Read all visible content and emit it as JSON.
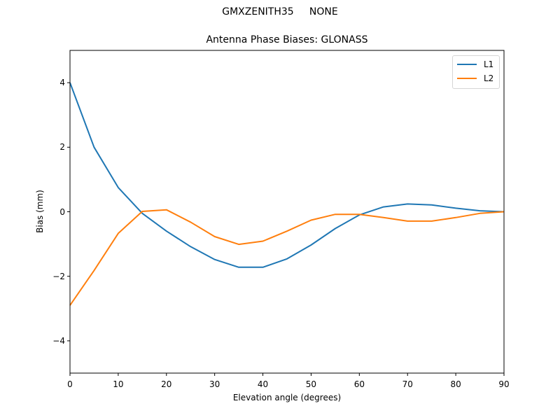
{
  "figure": {
    "suptitle": "GMXZENITH35     NONE",
    "title": "Antenna Phase Biases: GLONASS",
    "xlabel": "Elevation angle (degrees)",
    "ylabel": "Bias (mm)"
  },
  "legend": {
    "items": [
      {
        "label": "L1",
        "color": "#1f77b4"
      },
      {
        "label": "L2",
        "color": "#ff7f0e"
      }
    ]
  },
  "axes": {
    "xticks": [
      "0",
      "10",
      "20",
      "30",
      "40",
      "50",
      "60",
      "70",
      "80",
      "90"
    ],
    "yticks": [
      "4",
      "2",
      "0",
      "−2",
      "−4"
    ]
  },
  "chart_data": {
    "type": "line",
    "title": "Antenna Phase Biases: GLONASS",
    "suptitle": "GMXZENITH35     NONE",
    "xlabel": "Elevation angle (degrees)",
    "ylabel": "Bias (mm)",
    "xlim": [
      0,
      90
    ],
    "ylim": [
      -5,
      5
    ],
    "grid": false,
    "legend_position": "upper right",
    "x": [
      0,
      5,
      10,
      15,
      20,
      25,
      30,
      35,
      40,
      45,
      50,
      55,
      60,
      65,
      70,
      75,
      80,
      85,
      90
    ],
    "series": [
      {
        "name": "L1",
        "color": "#1f77b4",
        "values": [
          4.0,
          2.0,
          0.75,
          -0.05,
          -0.6,
          -1.08,
          -1.48,
          -1.72,
          -1.72,
          -1.46,
          -1.03,
          -0.52,
          -0.1,
          0.15,
          0.24,
          0.21,
          0.11,
          0.03,
          0.0
        ]
      },
      {
        "name": "L2",
        "color": "#ff7f0e",
        "values": [
          -2.9,
          -1.82,
          -0.67,
          0.01,
          0.06,
          -0.32,
          -0.77,
          -1.01,
          -0.91,
          -0.6,
          -0.26,
          -0.08,
          -0.08,
          -0.18,
          -0.29,
          -0.29,
          -0.18,
          -0.05,
          0.0
        ]
      }
    ]
  }
}
